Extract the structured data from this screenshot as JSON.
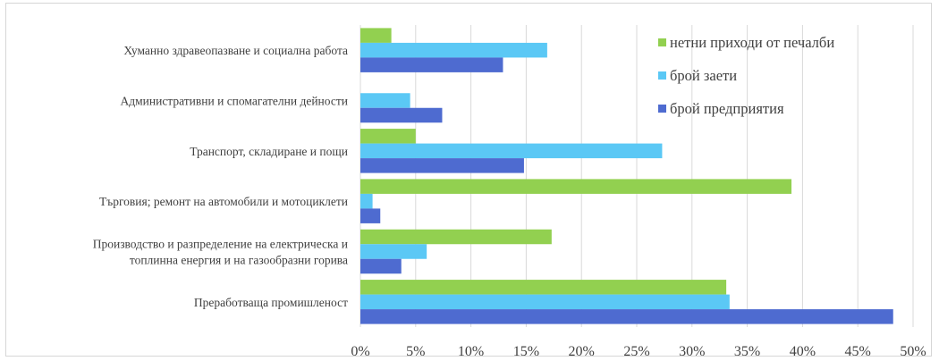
{
  "chart_data": {
    "type": "bar",
    "orientation": "horizontal",
    "categories": [
      [
        "Хуманно здравеопазване и социална работа"
      ],
      [
        "Административни и спомагателни дейности"
      ],
      [
        "Транспорт,  складиране и пощи"
      ],
      [
        "Търговия; ремонт на автомобили и мотоциклети"
      ],
      [
        "Производство и разпределение на електрическа и",
        "топлинна  енергия и на газообразни горива"
      ],
      [
        "Преработваща промишленост"
      ]
    ],
    "series": [
      {
        "name": "нетни приходи от печалби",
        "color": "#92d050",
        "values": [
          2.8,
          0,
          5.0,
          39.0,
          17.3,
          33.1
        ]
      },
      {
        "name": "брой заети",
        "color": "#5bc8f5",
        "values": [
          16.9,
          4.5,
          27.3,
          1.1,
          6.0,
          33.4
        ]
      },
      {
        "name": "брой предприятия",
        "color": "#4e6bd0",
        "values": [
          12.9,
          7.4,
          14.8,
          1.8,
          3.7,
          48.2
        ]
      }
    ],
    "xlim": [
      0,
      50
    ],
    "x_ticks": [
      "0%",
      "5%",
      "10%",
      "15%",
      "20%",
      "25%",
      "30%",
      "35%",
      "40%",
      "45%",
      "50%"
    ],
    "grid": true,
    "legend_position": "top-right"
  }
}
